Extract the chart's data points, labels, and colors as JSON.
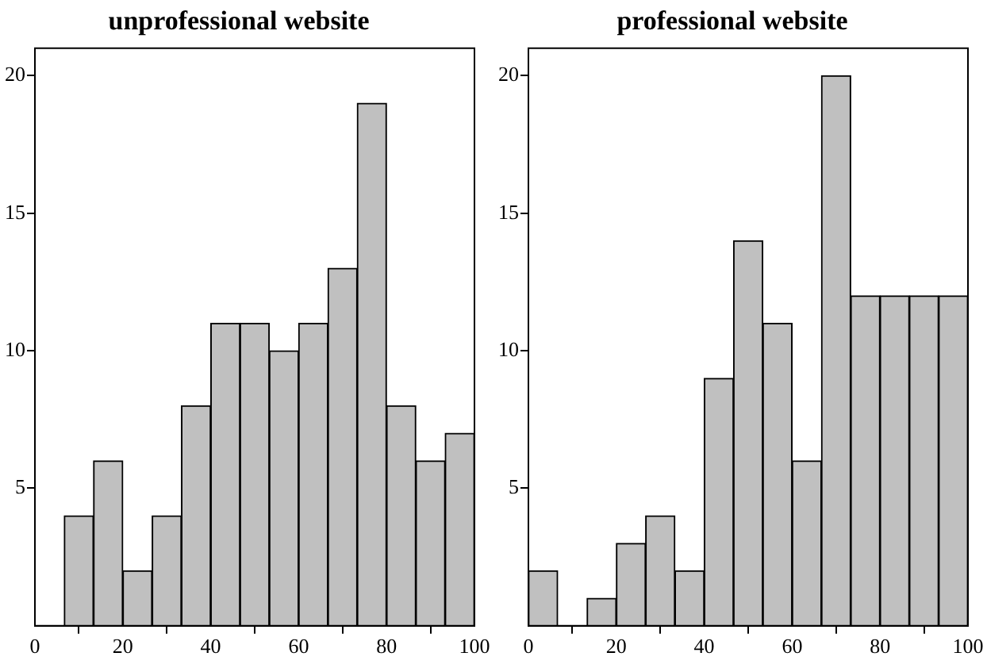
{
  "chart_data": [
    {
      "type": "histogram",
      "title": "unprofessional website",
      "bins": [
        0,
        6.67,
        13.33,
        20,
        26.67,
        33.33,
        40,
        46.67,
        53.33,
        60,
        66.67,
        73.33,
        80,
        86.67,
        93.33,
        100
      ],
      "values": [
        0,
        4,
        6,
        2,
        4,
        8,
        11,
        11,
        10,
        11,
        13,
        19,
        8,
        6,
        7
      ],
      "color": "#c0c0c0",
      "xlim": [
        0,
        100
      ],
      "xticks": [
        0,
        20,
        40,
        60,
        80,
        100
      ],
      "ylim": [
        0,
        21
      ],
      "yticks": [
        5,
        10,
        15,
        20
      ],
      "grid": false
    },
    {
      "type": "histogram",
      "title": "professional website",
      "bins": [
        0,
        6.67,
        13.33,
        20,
        26.67,
        33.33,
        40,
        46.67,
        53.33,
        60,
        66.67,
        73.33,
        80,
        86.67,
        93.33,
        100
      ],
      "values": [
        2,
        0,
        1,
        3,
        4,
        2,
        9,
        14,
        11,
        6,
        20,
        12,
        12,
        12,
        12
      ],
      "color": "#c0c0c0",
      "xlim": [
        0,
        100
      ],
      "xticks": [
        0,
        20,
        40,
        60,
        80,
        100
      ],
      "ylim": [
        0,
        21
      ],
      "yticks": [
        5,
        10,
        15,
        20
      ],
      "grid": false
    }
  ]
}
